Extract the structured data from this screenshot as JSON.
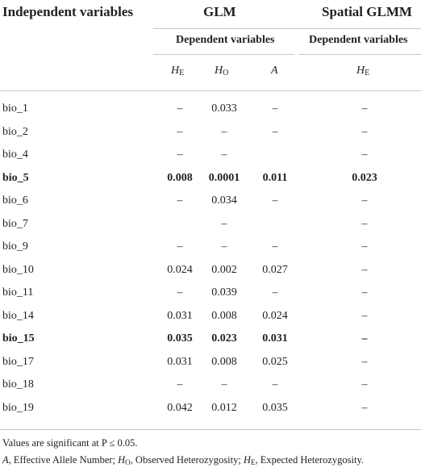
{
  "header": {
    "col_independent": "Independent variables",
    "group_glm": "GLM",
    "group_spatial": "Spatial GLMM",
    "dependent_glm": "Dependent variables",
    "dependent_spatial": "Dependent variables",
    "cols": [
      {
        "base": "H",
        "sub": "E"
      },
      {
        "base": "H",
        "sub": "O"
      },
      {
        "base": "A",
        "sub": ""
      },
      {
        "base": "H",
        "sub": "E"
      }
    ]
  },
  "rows": [
    {
      "label": "bio_1",
      "he": "–",
      "ho": "0.033",
      "a": "–",
      "she": "–",
      "bold": false
    },
    {
      "label": "bio_2",
      "he": "–",
      "ho": "–",
      "a": "–",
      "she": "–",
      "bold": false
    },
    {
      "label": "bio_4",
      "he": "–",
      "ho": "–",
      "a": "",
      "she": "–",
      "bold": false
    },
    {
      "label": "bio_5",
      "he": "0.008",
      "ho": "0.0001",
      "a": "0.011",
      "she": "0.023",
      "bold": true
    },
    {
      "label": "bio_6",
      "he": "–",
      "ho": "0.034",
      "a": "–",
      "she": "–",
      "bold": false
    },
    {
      "label": "bio_7",
      "he": "",
      "ho": "–",
      "a": "",
      "she": "–",
      "bold": false
    },
    {
      "label": "bio_9",
      "he": "–",
      "ho": "–",
      "a": "–",
      "she": "–",
      "bold": false
    },
    {
      "label": "bio_10",
      "he": "0.024",
      "ho": "0.002",
      "a": "0.027",
      "she": "–",
      "bold": false
    },
    {
      "label": "bio_11",
      "he": "–",
      "ho": "0.039",
      "a": "–",
      "she": "–",
      "bold": false
    },
    {
      "label": "bio_14",
      "he": "0.031",
      "ho": "0.008",
      "a": "0.024",
      "she": "–",
      "bold": false
    },
    {
      "label": "bio_15",
      "he": "0.035",
      "ho": "0.023",
      "a": "0.031",
      "she": "–",
      "bold": true
    },
    {
      "label": "bio_17",
      "he": "0.031",
      "ho": "0.008",
      "a": "0.025",
      "she": "–",
      "bold": false
    },
    {
      "label": "bio_18",
      "he": "–",
      "ho": "–",
      "a": "–",
      "she": "–",
      "bold": false
    },
    {
      "label": "bio_19",
      "he": "0.042",
      "ho": "0.012",
      "a": "0.035",
      "she": "–",
      "bold": false
    }
  ],
  "footnote": {
    "line1": "Values are significant at P ≤ 0.05.",
    "line2": [
      {
        "text": "A",
        "style": "italic"
      },
      {
        "text": ", Effective Allele Number; ",
        "style": "normal"
      },
      {
        "text": "H",
        "style": "italic"
      },
      {
        "text": "O",
        "style": "sub"
      },
      {
        "text": ", Observed Heterozygosity; ",
        "style": "normal"
      },
      {
        "text": "H",
        "style": "italic"
      },
      {
        "text": "E",
        "style": "sub"
      },
      {
        "text": ", Expected Heterozygosity.",
        "style": "normal"
      }
    ]
  }
}
